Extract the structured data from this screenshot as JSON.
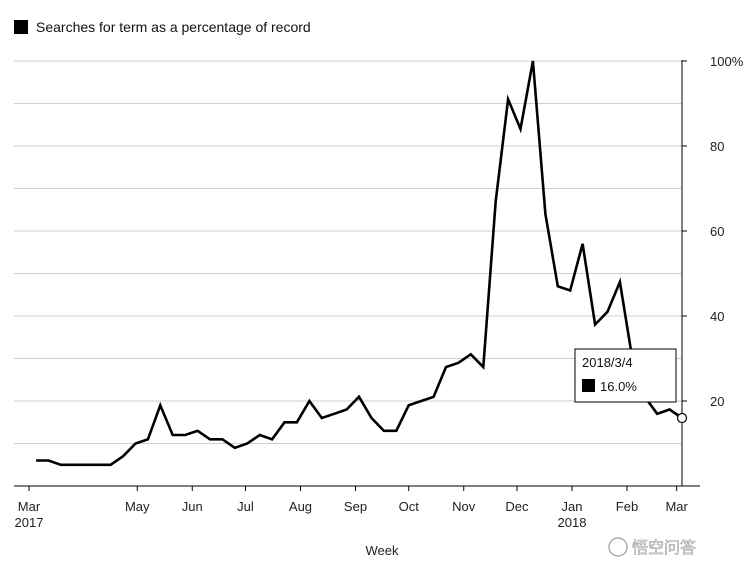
{
  "chart_data": {
    "type": "line",
    "legend_label": "Searches for term as a percentage of record",
    "legend_placement": "top-left",
    "legend_color": "#000000",
    "line_color": "#000000",
    "grid": true,
    "xlabel": "Week",
    "ylim": [
      0,
      100
    ],
    "y_ticks": [
      {
        "value": 20,
        "label": "20"
      },
      {
        "value": 40,
        "label": "40"
      },
      {
        "value": 60,
        "label": "60"
      },
      {
        "value": 80,
        "label": "80"
      },
      {
        "value": 100,
        "label": "100%"
      }
    ],
    "x_ticks": [
      {
        "date": "2017-03-01",
        "label": "Mar",
        "sublabel": "2017"
      },
      {
        "date": "2017-05-01",
        "label": "May",
        "sublabel": ""
      },
      {
        "date": "2017-06-01",
        "label": "Jun",
        "sublabel": ""
      },
      {
        "date": "2017-07-01",
        "label": "Jul",
        "sublabel": ""
      },
      {
        "date": "2017-08-01",
        "label": "Aug",
        "sublabel": ""
      },
      {
        "date": "2017-09-01",
        "label": "Sep",
        "sublabel": ""
      },
      {
        "date": "2017-10-01",
        "label": "Oct",
        "sublabel": ""
      },
      {
        "date": "2017-11-01",
        "label": "Nov",
        "sublabel": ""
      },
      {
        "date": "2017-12-01",
        "label": "Dec",
        "sublabel": ""
      },
      {
        "date": "2018-01-01",
        "label": "Jan",
        "sublabel": "2018"
      },
      {
        "date": "2018-02-01",
        "label": "Feb",
        "sublabel": ""
      },
      {
        "date": "2018-03-01",
        "label": "Mar",
        "sublabel": ""
      }
    ],
    "series": [
      {
        "x": [
          "2017-03-05",
          "2017-03-12",
          "2017-03-19",
          "2017-03-26",
          "2017-04-02",
          "2017-04-09",
          "2017-04-16",
          "2017-04-23",
          "2017-04-30",
          "2017-05-07",
          "2017-05-14",
          "2017-05-21",
          "2017-05-28",
          "2017-06-04",
          "2017-06-11",
          "2017-06-18",
          "2017-06-25",
          "2017-07-02",
          "2017-07-09",
          "2017-07-16",
          "2017-07-23",
          "2017-07-30",
          "2017-08-06",
          "2017-08-13",
          "2017-08-20",
          "2017-08-27",
          "2017-09-03",
          "2017-09-10",
          "2017-09-17",
          "2017-09-24",
          "2017-10-01",
          "2017-10-08",
          "2017-10-15",
          "2017-10-22",
          "2017-10-29",
          "2017-11-05",
          "2017-11-12",
          "2017-11-19",
          "2017-11-26",
          "2017-12-03",
          "2017-12-10",
          "2017-12-17",
          "2017-12-24",
          "2017-12-31",
          "2018-01-07",
          "2018-01-14",
          "2018-01-21",
          "2018-01-28",
          "2018-02-04",
          "2018-02-11",
          "2018-02-18",
          "2018-02-25",
          "2018-03-04"
        ],
        "values": [
          6,
          6,
          5,
          5,
          5,
          5,
          5,
          7,
          10,
          11,
          19,
          12,
          12,
          13,
          11,
          11,
          9,
          10,
          12,
          11,
          15,
          15,
          20,
          16,
          17,
          18,
          21,
          16,
          13,
          13,
          19,
          20,
          21,
          28,
          29,
          31,
          28,
          67,
          91,
          84,
          100,
          64,
          47,
          46,
          57,
          38,
          41,
          48,
          30,
          21,
          17,
          18,
          16
        ]
      }
    ],
    "tooltip": {
      "date": "2018/3/4",
      "value": "16.0%",
      "swatch_color": "#000000"
    },
    "watermark": "悟空问答"
  }
}
